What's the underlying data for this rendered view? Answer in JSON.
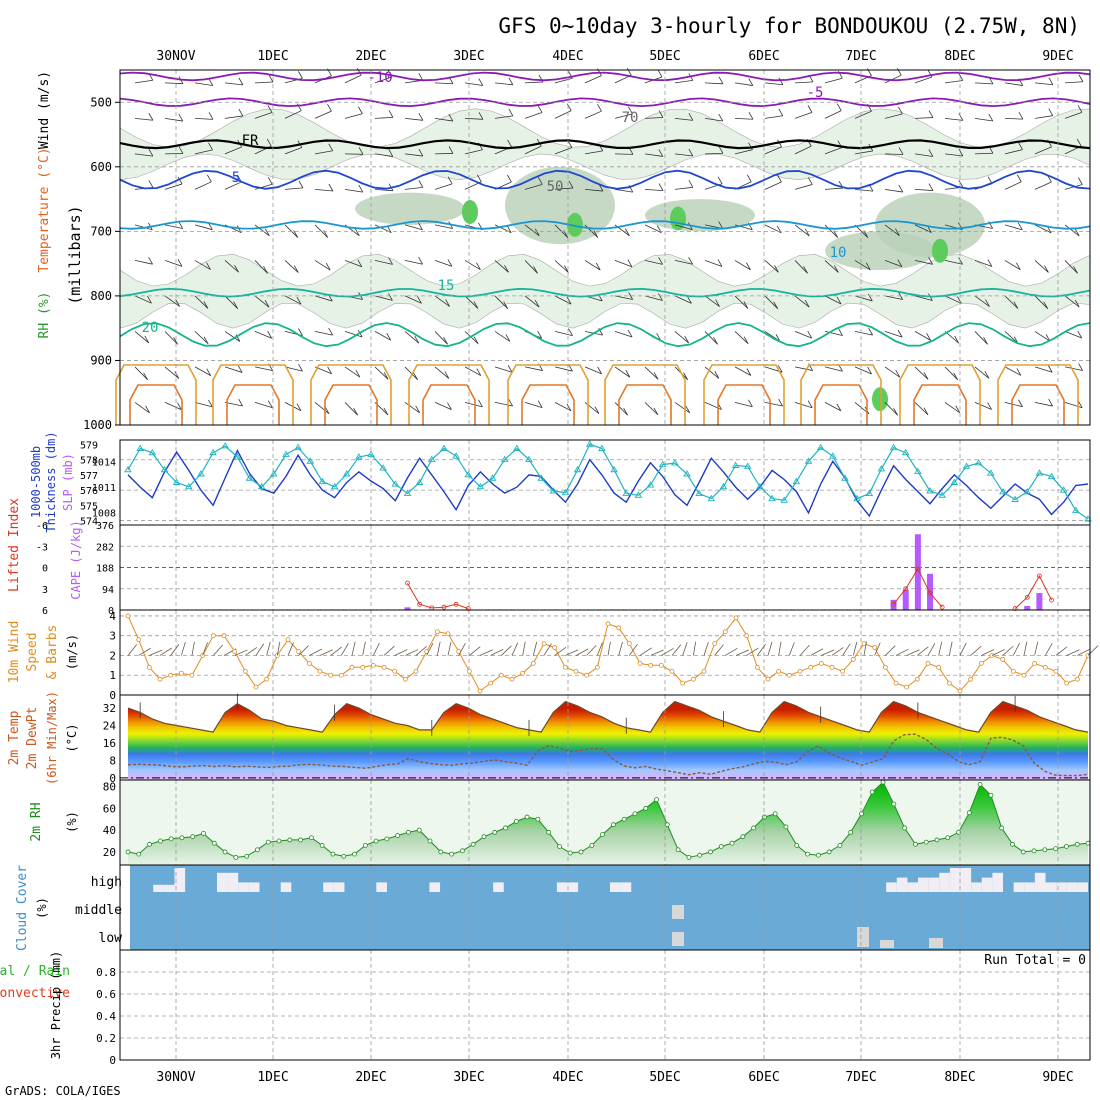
{
  "title": "GFS 0~10day 3-hourly for BONDOUKOU (2.75W, 8N)",
  "footer": "GrADS: COLA/IGES",
  "colors": {
    "frame": "#000000",
    "grid": "#9a9a9a",
    "wind_barb": "#333333",
    "rh_light": "#e6f2e6",
    "rh_mid": "#b7cfb7",
    "rh_dark": "#98ad98",
    "rh_bright": "#5ccc5c",
    "temp_m10": "#8a1ab4",
    "temp_m5": "#8a1ab4",
    "temp_fr": "#000000",
    "temp_5": "#1e46d2",
    "temp_10": "#1a96d2",
    "temp_15": "#14b4a0",
    "temp_20": "#14b48c",
    "temp_25": "#e0a032",
    "temp_30": "#e07828",
    "thickness": "#1e3cc8",
    "slp": "#20b4c0",
    "cape": "#b45aff",
    "lifted_index": "#e0321e",
    "wind10m": "#e08c1e",
    "dewpoint": "#8a5a3c",
    "temp2m_line": "#6a4a2a",
    "rh2m": "#1e8c1e",
    "cloud_bg": "#6aaad6",
    "cloud_bar": "#f0eef4"
  },
  "chart_data": [
    {
      "panel": "upper-air",
      "type": "contour",
      "ylabel_lines": [
        "Temperature (°C)",
        "Wind (m/s)",
        "RH (%)",
        "(millibars)"
      ],
      "ylabel_parts": [
        {
          "text": "RH (%)",
          "color": "#2a9a2a"
        },
        {
          "text": "Temperature (°C)",
          "color": "#e06420"
        },
        {
          "text": "Wind (m/s)",
          "color": "#000000"
        }
      ],
      "ylabel_units": "(millibars)",
      "y_ticks": [
        500,
        600,
        700,
        800,
        900,
        1000
      ],
      "ylim": [
        1000,
        450
      ],
      "x_dates": [
        "30NOV",
        "1DEC",
        "2DEC",
        "3DEC",
        "4DEC",
        "5DEC",
        "6DEC",
        "7DEC",
        "8DEC",
        "9DEC"
      ],
      "contour_labels": [
        {
          "text": "-10",
          "level": -10
        },
        {
          "text": "-5",
          "level": -5
        },
        {
          "text": "FR",
          "level": 0
        },
        {
          "text": "5",
          "level": 5
        },
        {
          "text": "10",
          "level": 10
        },
        {
          "text": "15",
          "level": 15
        },
        {
          "text": "20",
          "level": 20
        },
        {
          "text": "50",
          "level": 50
        },
        {
          "text": "70",
          "level": 70
        }
      ],
      "isotherm_pressure_mb": {
        "-10": 460,
        "-5": 500,
        "FR": 565,
        "5": 620,
        "10": 690,
        "15": 795,
        "20": 860
      }
    },
    {
      "panel": "thickness-slp",
      "type": "line",
      "ylabel_lines": [
        "1000-500mb",
        "Thickness (dm)",
        "SLP (mb)"
      ],
      "ylabel_left_color": "#1e3cc8",
      "ylabel_right_color": "#b45aff",
      "thickness_ticks": [
        574,
        575,
        576,
        577,
        578,
        579
      ],
      "slp_ticks": [
        1008,
        1011,
        1014
      ],
      "thickness_ylim": [
        573.7,
        579.3
      ],
      "slp_ylim": [
        1006.5,
        1016.5
      ],
      "thickness": [
        577.0,
        576.2,
        575.5,
        577.2,
        578.5,
        577.3,
        576.0,
        575.0,
        576.8,
        578.6,
        577.1,
        576.1,
        575.8,
        576.9,
        578.3,
        577.0,
        576.0,
        575.5,
        576.5,
        577.2,
        576.6,
        576.1,
        575.3,
        576.8,
        578.1,
        577.0,
        575.9,
        574.7,
        576.3,
        577.2,
        576.4,
        575.8,
        576.2,
        577.0,
        576.9,
        576.0,
        575.2,
        576.4,
        578.0,
        577.0,
        575.8,
        575.2,
        576.6,
        577.8,
        576.9,
        575.7,
        575.0,
        576.5,
        578.1,
        577.2,
        576.2,
        575.4,
        576.2,
        577.3,
        576.7,
        575.9,
        574.5,
        576.4,
        577.9,
        576.8,
        575.3,
        574.3,
        576.0,
        577.6,
        576.7,
        575.9,
        575.1,
        576.1,
        577.0,
        576.3,
        575.5,
        574.8,
        575.6,
        576.4,
        575.8,
        575.4,
        574.4,
        575.2,
        576.3,
        576.4
      ],
      "slp": [
        1013,
        1015.5,
        1015,
        1013,
        1011.5,
        1011,
        1012.5,
        1015,
        1015.8,
        1014.5,
        1012,
        1011,
        1012.5,
        1014.8,
        1015.6,
        1014,
        1011.6,
        1011,
        1012.5,
        1014.5,
        1014.8,
        1013.2,
        1011.3,
        1010.2,
        1011.5,
        1014.2,
        1015.5,
        1014.6,
        1012.4,
        1011,
        1012,
        1014.2,
        1015.5,
        1014.2,
        1012,
        1010.5,
        1010.3,
        1013,
        1016,
        1015.5,
        1013,
        1010.2,
        1010,
        1011.2,
        1013.6,
        1013.8,
        1012.5,
        1010.2,
        1009.6,
        1011,
        1013.5,
        1013.4,
        1011,
        1009.6,
        1009.4,
        1011.6,
        1014,
        1015.6,
        1014.6,
        1012,
        1009.6,
        1010.2,
        1013.1,
        1015.6,
        1015,
        1012.8,
        1010.5,
        1010,
        1011.5,
        1013.4,
        1013.8,
        1012.6,
        1010.4,
        1009.5,
        1010.4,
        1012.6,
        1012.2,
        1010.6,
        1008.2,
        1007.2
      ]
    },
    {
      "panel": "cape-li",
      "type": "bar",
      "ylabel_lines": [
        "Lifted Index",
        "CAPE (J/kg)"
      ],
      "li_ticks": [
        -6,
        -3,
        0,
        3,
        6
      ],
      "cape_ticks": [
        0,
        94,
        188,
        282,
        376
      ],
      "cape_ylim": [
        0,
        376
      ],
      "li_ylim": [
        6,
        -6
      ],
      "lifted_index": [
        null,
        null,
        null,
        null,
        null,
        null,
        null,
        null,
        null,
        null,
        null,
        null,
        null,
        null,
        null,
        null,
        null,
        null,
        null,
        null,
        null,
        null,
        null,
        2.2,
        5.2,
        5.7,
        5.6,
        5.2,
        5.8,
        null,
        null,
        null,
        null,
        null,
        null,
        null,
        null,
        null,
        null,
        null,
        null,
        null,
        null,
        null,
        null,
        null,
        null,
        null,
        null,
        null,
        null,
        null,
        null,
        null,
        null,
        null,
        null,
        null,
        null,
        null,
        null,
        null,
        null,
        5.2,
        3.0,
        0.2,
        3.6,
        5.6,
        null,
        null,
        null,
        null,
        null,
        5.8,
        4.2,
        1.2,
        4.6,
        null,
        null,
        null
      ],
      "cape": [
        0,
        0,
        0,
        0,
        0,
        0,
        0,
        0,
        0,
        0,
        0,
        0,
        0,
        0,
        0,
        0,
        0,
        0,
        0,
        0,
        0,
        0,
        0,
        12,
        0,
        0,
        0,
        0,
        0,
        0,
        0,
        0,
        0,
        0,
        0,
        0,
        0,
        0,
        0,
        0,
        0,
        0,
        0,
        0,
        0,
        0,
        0,
        0,
        0,
        0,
        0,
        0,
        0,
        0,
        0,
        0,
        0,
        0,
        0,
        0,
        0,
        0,
        0,
        45,
        90,
        335,
        160,
        0,
        0,
        0,
        0,
        0,
        0,
        0,
        18,
        75,
        0,
        0,
        0,
        0
      ]
    },
    {
      "panel": "wind10m",
      "type": "line",
      "ylabel_lines": [
        "10m Wind",
        "Speed",
        "(m/s)",
        "& Barbs"
      ],
      "y_ticks": [
        0,
        1,
        2,
        3,
        4
      ],
      "ylim": [
        0,
        4.3
      ],
      "speed": [
        4.0,
        2.8,
        1.4,
        0.8,
        1.0,
        1.1,
        1.0,
        2.0,
        3.0,
        3.0,
        2.2,
        1.2,
        0.4,
        0.8,
        2.0,
        2.8,
        2.2,
        1.6,
        1.2,
        1.0,
        1.0,
        1.4,
        1.4,
        1.5,
        1.4,
        1.2,
        0.8,
        1.2,
        2.2,
        3.2,
        3.1,
        2.2,
        1.2,
        0.2,
        0.6,
        1.0,
        0.8,
        1.1,
        1.6,
        2.6,
        2.4,
        1.4,
        1.2,
        1.0,
        1.4,
        3.6,
        3.4,
        2.6,
        1.6,
        1.5,
        1.5,
        1.2,
        0.6,
        0.8,
        1.2,
        2.6,
        3.2,
        3.9,
        3.0,
        1.4,
        0.8,
        1.2,
        1.0,
        1.2,
        1.4,
        1.6,
        1.4,
        1.2,
        1.8,
        2.6,
        2.4,
        1.4,
        0.6,
        0.4,
        0.8,
        1.6,
        1.4,
        0.6,
        0.2,
        0.8,
        1.6,
        2.0,
        1.8,
        1.2,
        1.0,
        1.6,
        1.4,
        1.2,
        0.6,
        0.8,
        2.0
      ]
    },
    {
      "panel": "temp2m",
      "type": "area",
      "ylabel_lines": [
        "2m Temp",
        "2m DewPt",
        "(6hr Min/Max)",
        "(°C)"
      ],
      "y_ticks": [
        0,
        8,
        16,
        24,
        32
      ],
      "ylim": [
        -1,
        38
      ],
      "temperature": [
        32,
        30,
        27,
        25,
        24,
        23,
        22,
        21,
        30,
        34,
        31,
        27,
        26,
        24,
        23,
        22,
        21,
        29,
        34,
        32,
        29,
        27,
        25,
        24,
        22,
        22,
        30,
        34,
        32,
        29,
        27,
        25,
        23,
        22,
        21,
        30,
        35,
        33,
        30,
        28,
        25,
        23,
        22,
        21,
        30,
        35,
        33,
        31,
        28,
        26,
        24,
        22,
        21,
        30,
        35,
        33,
        30,
        28,
        26,
        24,
        22,
        21,
        30,
        35,
        33,
        30,
        28,
        26,
        24,
        22,
        21,
        30,
        35,
        33,
        31,
        28,
        26,
        24,
        22,
        21
      ],
      "dewpoint": [
        6.0,
        6.2,
        6.0,
        5.8,
        5.2,
        5.0,
        5.4,
        5.6,
        5.2,
        5.6,
        5.0,
        5.4,
        5.0,
        4.8,
        5.2,
        5.4,
        6.0,
        6.2,
        5.8,
        5.4,
        5.2,
        4.8,
        4.4,
        5.2,
        6.0,
        6.4,
        8.8,
        7.4,
        6.6,
        6.0,
        5.8,
        6.4,
        6.8,
        7.6,
        8.2,
        7.4,
        6.8,
        5.8,
        12.4,
        14.8,
        13.6,
        12.0,
        12.6,
        13.4,
        13.2,
        8.4,
        5.4,
        4.6,
        5.2,
        4.0,
        3.2,
        2.4,
        1.4,
        2.4,
        1.6,
        3.0,
        4.2,
        5.0,
        6.4,
        7.6,
        7.2,
        6.0,
        7.4,
        12.0,
        14.6,
        11.4,
        9.2,
        7.6,
        5.8,
        7.2,
        8.8,
        17.0,
        19.8,
        20.0,
        17.6,
        13.4,
        11.0,
        7.4,
        6.0,
        7.4,
        18.2,
        18.6,
        17.4,
        14.6,
        6.8,
        3.0,
        1.2,
        1.0,
        1.0,
        1.6
      ]
    },
    {
      "panel": "rh2m",
      "type": "area",
      "ylabel_lines": [
        "2m RH",
        "(%)"
      ],
      "y_ticks": [
        20,
        40,
        60,
        80
      ],
      "ylim": [
        8,
        86
      ],
      "rh": [
        20,
        18,
        27,
        30,
        32,
        33,
        34,
        37,
        28,
        20,
        15,
        16,
        22,
        29,
        30,
        31,
        31,
        33,
        26,
        18,
        16,
        18,
        26,
        30,
        32,
        35,
        38,
        40,
        30,
        20,
        18,
        21,
        27,
        34,
        38,
        42,
        48,
        52,
        50,
        38,
        25,
        19,
        20,
        26,
        36,
        45,
        50,
        55,
        60,
        68,
        45,
        22,
        15,
        17,
        20,
        25,
        28,
        34,
        42,
        52,
        55,
        43,
        26,
        18,
        17,
        20,
        26,
        38,
        55,
        75,
        84,
        64,
        42,
        27,
        29,
        31,
        33,
        38,
        56,
        82,
        72,
        42,
        27,
        20,
        21,
        22,
        23,
        25,
        27,
        28
      ]
    },
    {
      "panel": "cloud",
      "type": "bar",
      "ylabel_lines": [
        "Cloud Cover",
        "(%)"
      ],
      "layer_labels": [
        "high",
        "middle",
        "low"
      ],
      "high": [
        0,
        0,
        3,
        3,
        10,
        0,
        0,
        0,
        8,
        8,
        4,
        4,
        0,
        0,
        4,
        0,
        0,
        0,
        4,
        4,
        0,
        0,
        0,
        4,
        0,
        0,
        0,
        0,
        4,
        0,
        0,
        0,
        0,
        0,
        4,
        0,
        0,
        0,
        0,
        0,
        4,
        4,
        0,
        0,
        0,
        4,
        4,
        0,
        0,
        0,
        0,
        0,
        0,
        0,
        0,
        0,
        0,
        0,
        0,
        0,
        0,
        0,
        0,
        0,
        0,
        0,
        0,
        0,
        0,
        0,
        0,
        4,
        6,
        4,
        6,
        6,
        8,
        10,
        10,
        4,
        6,
        8,
        0,
        4,
        4,
        8,
        4,
        4,
        4,
        4
      ],
      "middle": [
        0,
        0,
        0,
        0,
        0,
        0,
        0,
        0,
        0,
        0,
        0,
        0,
        0,
        0,
        0,
        0,
        0,
        0,
        0,
        0,
        0,
        0,
        0,
        0,
        0,
        0,
        0,
        0,
        0,
        0,
        0,
        0,
        0,
        0,
        0,
        0,
        0,
        0,
        0,
        0,
        0,
        0,
        0,
        0,
        0,
        0,
        0,
        0,
        0,
        0,
        0,
        0,
        0,
        0,
        0,
        0,
        0,
        0,
        0,
        0,
        0,
        0,
        0,
        0,
        0,
        0,
        0,
        0,
        0,
        0,
        0,
        0,
        0,
        0,
        0,
        0,
        0,
        0,
        0,
        0,
        0,
        0,
        0,
        0,
        0,
        0,
        0,
        0,
        0,
        0
      ],
      "low": [
        0,
        0,
        0,
        0,
        0,
        0,
        0,
        0,
        0,
        0,
        0,
        0,
        0,
        0,
        0,
        0,
        0,
        0,
        0,
        0,
        0,
        0,
        0,
        0,
        0,
        0,
        0,
        0,
        0,
        0,
        0,
        0,
        0,
        0,
        0,
        0,
        0,
        0,
        0,
        0,
        0,
        0,
        0,
        0,
        0,
        0,
        0,
        0,
        0,
        0,
        0,
        0,
        0,
        0,
        0,
        0,
        0,
        0,
        0,
        0,
        0,
        0,
        0,
        0,
        0,
        0,
        0,
        0,
        0,
        0,
        0,
        0,
        0,
        0,
        0,
        0,
        0,
        0,
        0,
        0,
        0,
        0,
        0,
        0,
        0,
        0,
        0,
        0,
        0,
        0
      ]
    },
    {
      "panel": "precip",
      "type": "bar",
      "ylabel_lines": [
        "Total / Rain",
        "Convective",
        "3hr Precip (mm)"
      ],
      "y_ticks": [
        0,
        0.2,
        0.4,
        0.6,
        0.8
      ],
      "ylim": [
        0,
        1
      ],
      "run_total_label": "Run Total = 0",
      "values": []
    }
  ]
}
